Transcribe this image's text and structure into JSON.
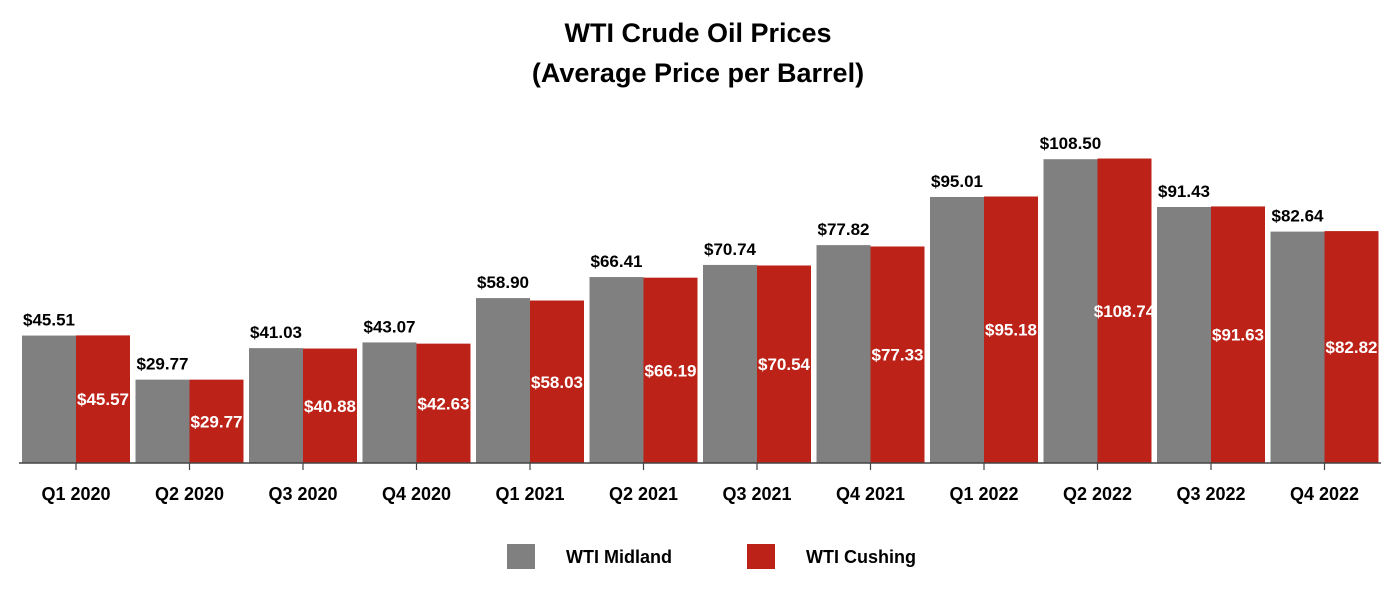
{
  "chart_data": {
    "type": "bar",
    "title": "WTI Crude Oil Prices",
    "subtitle": "(Average Price per Barrel)",
    "categories": [
      "Q1 2020",
      "Q2 2020",
      "Q3 2020",
      "Q4 2020",
      "Q1 2021",
      "Q2 2021",
      "Q3 2021",
      "Q4 2021",
      "Q1 2022",
      "Q2 2022",
      "Q3 2022",
      "Q4 2022"
    ],
    "series": [
      {
        "name": "WTI Midland",
        "color": "#808080",
        "values": [
          45.51,
          29.77,
          41.03,
          43.07,
          58.9,
          66.41,
          70.74,
          77.82,
          95.01,
          108.5,
          91.43,
          82.64
        ],
        "labels": [
          "$45.51",
          "$29.77",
          "$41.03",
          "$43.07",
          "$58.90",
          "$66.41",
          "$70.74",
          "$77.82",
          "$95.01",
          "$108.50",
          "$91.43",
          "$82.64"
        ],
        "label_position": "above"
      },
      {
        "name": "WTI Cushing",
        "color": "#BC2218",
        "values": [
          45.57,
          29.77,
          40.88,
          42.63,
          58.03,
          66.19,
          70.54,
          77.33,
          95.18,
          108.74,
          91.63,
          82.82
        ],
        "labels": [
          "$45.57",
          "$29.77",
          "$40.88",
          "$42.63",
          "$58.03",
          "$66.19",
          "$70.54",
          "$77.33",
          "$95.18",
          "$108.74",
          "$91.63",
          "$82.82"
        ],
        "label_position": "inside"
      }
    ],
    "xlabel": "",
    "ylabel": "",
    "ylim": [
      0,
      130
    ],
    "grid": false,
    "legend": "bottom-center"
  }
}
